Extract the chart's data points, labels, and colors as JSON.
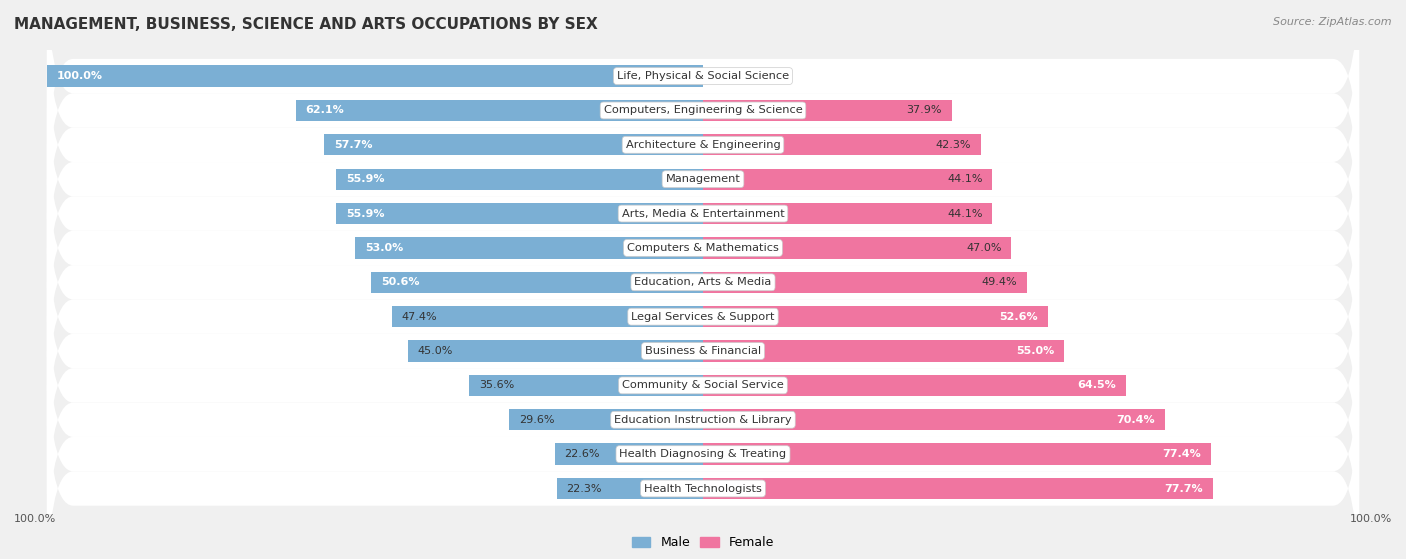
{
  "title": "MANAGEMENT, BUSINESS, SCIENCE AND ARTS OCCUPATIONS BY SEX",
  "source": "Source: ZipAtlas.com",
  "categories": [
    "Life, Physical & Social Science",
    "Computers, Engineering & Science",
    "Architecture & Engineering",
    "Management",
    "Arts, Media & Entertainment",
    "Computers & Mathematics",
    "Education, Arts & Media",
    "Legal Services & Support",
    "Business & Financial",
    "Community & Social Service",
    "Education Instruction & Library",
    "Health Diagnosing & Treating",
    "Health Technologists"
  ],
  "male_pct": [
    100.0,
    62.1,
    57.7,
    55.9,
    55.9,
    53.0,
    50.6,
    47.4,
    45.0,
    35.6,
    29.6,
    22.6,
    22.3
  ],
  "female_pct": [
    0.0,
    37.9,
    42.3,
    44.1,
    44.1,
    47.0,
    49.4,
    52.6,
    55.0,
    64.5,
    70.4,
    77.4,
    77.7
  ],
  "male_color": "#7bafd4",
  "female_color": "#f075a0",
  "female_color_light": "#f9aec8",
  "background_color": "#f0f0f0",
  "row_bg_color": "#ffffff",
  "legend_male": "Male",
  "legend_female": "Female",
  "label_threshold": 50.0
}
